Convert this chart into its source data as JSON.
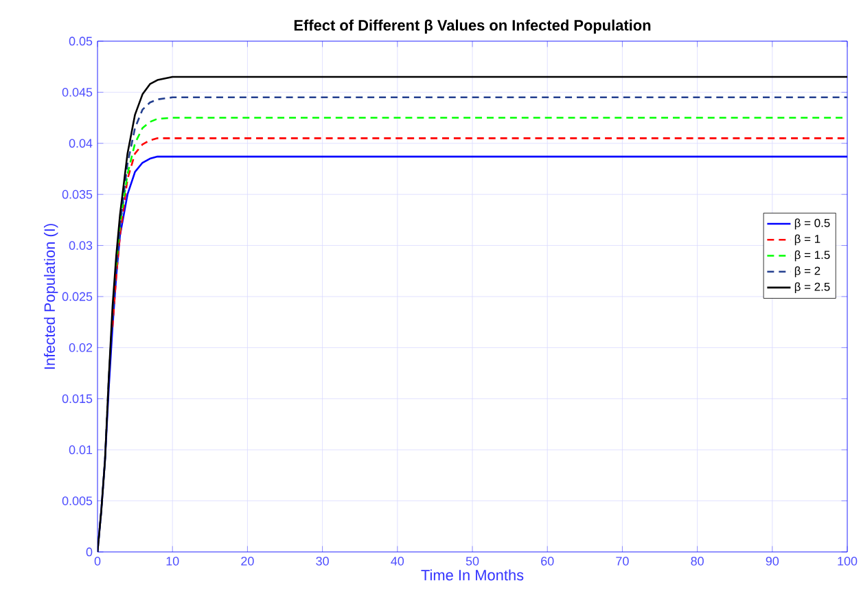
{
  "chart_data": {
    "type": "line",
    "title": "Effect of Different β Values on Infected Population",
    "xlabel": "Time In Months",
    "ylabel": "Infected Population (I)",
    "xlim": [
      0,
      100
    ],
    "ylim": [
      0,
      0.05
    ],
    "xticks": [
      0,
      10,
      20,
      30,
      40,
      50,
      60,
      70,
      80,
      90,
      100
    ],
    "yticks": [
      0,
      0.005,
      0.01,
      0.015,
      0.02,
      0.025,
      0.03,
      0.035,
      0.04,
      0.045,
      0.05
    ],
    "grid": true,
    "legend": "right",
    "marker": "none",
    "series": [
      {
        "name": "β = 0.5",
        "color": "#0000ff",
        "line_style": "solid",
        "x": [
          0,
          0.5,
          1,
          1.5,
          2,
          2.5,
          3,
          4,
          5,
          6,
          7,
          8,
          10,
          100
        ],
        "values": [
          0,
          0.004,
          0.009,
          0.016,
          0.022,
          0.027,
          0.031,
          0.035,
          0.0372,
          0.0381,
          0.0385,
          0.0387,
          0.0387,
          0.0387
        ]
      },
      {
        "name": "β = 1",
        "color": "#ff0000",
        "line_style": "dashed",
        "x": [
          2,
          2.5,
          3,
          4,
          5,
          6,
          7,
          8,
          10,
          100
        ],
        "values": [
          0.022,
          0.027,
          0.031,
          0.0365,
          0.039,
          0.0399,
          0.0403,
          0.0405,
          0.0405,
          0.0405
        ]
      },
      {
        "name": "β = 1.5",
        "color": "#00ff00",
        "line_style": "dashed",
        "x": [
          2.5,
          3,
          4,
          5,
          6,
          7,
          8,
          10,
          100
        ],
        "values": [
          0.028,
          0.032,
          0.037,
          0.04,
          0.0415,
          0.0421,
          0.0424,
          0.0425,
          0.0425
        ]
      },
      {
        "name": "β = 2",
        "color": "#233f8f",
        "line_style": "dashed",
        "x": [
          0,
          0.5,
          1,
          1.5,
          2,
          2.5,
          3,
          4,
          5,
          6,
          7,
          8,
          10,
          100
        ],
        "values": [
          0,
          0.004,
          0.009,
          0.017,
          0.023,
          0.028,
          0.032,
          0.038,
          0.0415,
          0.0433,
          0.044,
          0.0443,
          0.0445,
          0.0445
        ]
      },
      {
        "name": "β = 2.5",
        "color": "#000000",
        "line_style": "solid",
        "x": [
          0,
          0.5,
          1,
          1.5,
          2,
          2.5,
          3,
          4,
          5,
          6,
          7,
          8,
          10,
          100
        ],
        "values": [
          0,
          0.004,
          0.009,
          0.017,
          0.024,
          0.029,
          0.033,
          0.039,
          0.0428,
          0.0448,
          0.0458,
          0.0462,
          0.0465,
          0.0465
        ]
      }
    ]
  }
}
